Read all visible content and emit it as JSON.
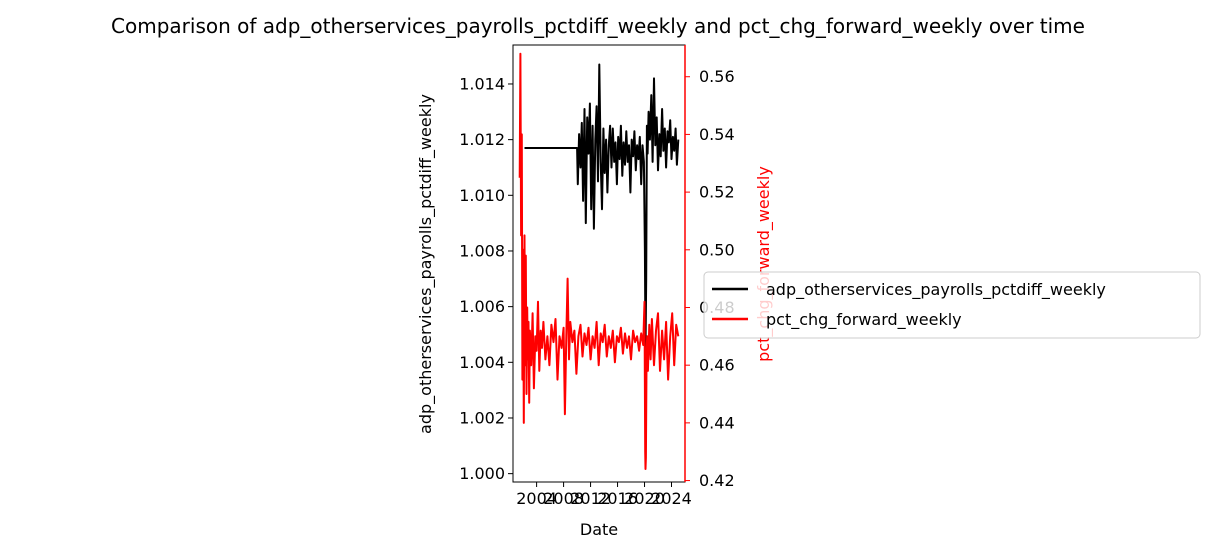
{
  "chart_data": {
    "type": "line",
    "title": "Comparison of adp_otherservices_payrolls_pctdiff_weekly and pct_chg_forward_weekly over time",
    "xlabel": "Date",
    "ylabel_left": "adp_otherservices_payrolls_pctdiff_weekly",
    "ylabel_right": "pct_chg_forward_weekly",
    "xlim": [
      2000.5,
      2026.0
    ],
    "ylim_left": [
      0.9997,
      1.0154
    ],
    "ylim_right": [
      0.4195,
      0.571
    ],
    "x_ticks": [
      2004,
      2008,
      2012,
      2016,
      2020,
      2024
    ],
    "x_tick_labels": [
      "2004",
      "2008",
      "2012",
      "2016",
      "2020",
      "2024"
    ],
    "y_left_ticks": [
      1.0,
      1.002,
      1.004,
      1.006,
      1.008,
      1.01,
      1.012,
      1.014
    ],
    "y_left_tick_labels": [
      "1.000",
      "1.002",
      "1.004",
      "1.006",
      "1.008",
      "1.010",
      "1.012",
      "1.014"
    ],
    "y_right_ticks": [
      0.42,
      0.44,
      0.46,
      0.48,
      0.5,
      0.52,
      0.54,
      0.56
    ],
    "y_right_tick_labels": [
      "0.42",
      "0.44",
      "0.46",
      "0.48",
      "0.50",
      "0.52",
      "0.54",
      "0.56"
    ],
    "legend_position": "center-right (outside)",
    "grid": false,
    "series": [
      {
        "name": "adp_otherservices_payrolls_pctdiff_weekly",
        "axis": "left",
        "color": "#000000",
        "x": [
          2002.2,
          2010.0,
          2010.1,
          2010.3,
          2010.5,
          2010.7,
          2010.9,
          2011.1,
          2011.3,
          2011.5,
          2011.7,
          2011.9,
          2012.1,
          2012.3,
          2012.5,
          2012.7,
          2012.9,
          2013.1,
          2013.3,
          2013.5,
          2013.7,
          2013.9,
          2014.1,
          2014.3,
          2014.5,
          2014.7,
          2014.9,
          2015.1,
          2015.3,
          2015.5,
          2015.7,
          2015.9,
          2016.1,
          2016.3,
          2016.5,
          2016.7,
          2016.9,
          2017.1,
          2017.3,
          2017.5,
          2017.7,
          2017.9,
          2018.1,
          2018.3,
          2018.5,
          2018.7,
          2018.9,
          2019.1,
          2019.3,
          2019.5,
          2019.7,
          2019.9,
          2020.05,
          2020.15,
          2020.25,
          2020.35,
          2020.45,
          2020.6,
          2020.8,
          2021.0,
          2021.2,
          2021.4,
          2021.6,
          2021.8,
          2022.0,
          2022.2,
          2022.4,
          2022.6,
          2022.8,
          2023.0,
          2023.2,
          2023.4,
          2023.6,
          2023.8,
          2024.0,
          2024.2,
          2024.4,
          2024.6,
          2024.8,
          2025.0
        ],
        "y": [
          1.0117,
          1.0117,
          1.0104,
          1.0122,
          1.011,
          1.0126,
          1.0098,
          1.0131,
          1.009,
          1.0128,
          1.0115,
          1.0133,
          1.0095,
          1.0125,
          1.0088,
          1.012,
          1.0132,
          1.0105,
          1.0147,
          1.0112,
          1.0095,
          1.0124,
          1.0108,
          1.012,
          1.0101,
          1.0118,
          1.0125,
          1.011,
          1.0124,
          1.0112,
          1.0119,
          1.0104,
          1.0121,
          1.0113,
          1.0125,
          1.0107,
          1.0119,
          1.0111,
          1.0123,
          1.0112,
          1.0118,
          1.0101,
          1.012,
          1.0114,
          1.0123,
          1.0109,
          1.0118,
          1.0113,
          1.0121,
          1.0104,
          1.0118,
          1.0112,
          1.008,
          1.0045,
          1.007,
          1.0125,
          1.0115,
          1.013,
          1.012,
          1.0136,
          1.0112,
          1.0142,
          1.0118,
          1.0128,
          1.0109,
          1.0122,
          1.0114,
          1.0131,
          1.0116,
          1.0124,
          1.011,
          1.0123,
          1.0119,
          1.0127,
          1.0113,
          1.0121,
          1.0116,
          1.0124,
          1.0111,
          1.012
        ]
      },
      {
        "name": "pct_chg_forward_weekly",
        "axis": "right",
        "color": "#ff0000",
        "x": [
          2001.5,
          2001.6,
          2001.7,
          2001.8,
          2001.9,
          2002.0,
          2002.1,
          2002.2,
          2002.3,
          2002.4,
          2002.5,
          2002.6,
          2002.7,
          2002.8,
          2002.9,
          2003.0,
          2003.2,
          2003.4,
          2003.6,
          2003.8,
          2004.0,
          2004.2,
          2004.4,
          2004.6,
          2004.8,
          2005.0,
          2005.3,
          2005.6,
          2005.9,
          2006.2,
          2006.5,
          2006.8,
          2007.1,
          2007.4,
          2007.7,
          2008.0,
          2008.2,
          2008.4,
          2008.6,
          2008.8,
          2009.0,
          2009.3,
          2009.6,
          2009.9,
          2010.2,
          2010.5,
          2010.8,
          2011.1,
          2011.4,
          2011.7,
          2012.0,
          2012.3,
          2012.6,
          2012.9,
          2013.2,
          2013.5,
          2013.8,
          2014.1,
          2014.4,
          2014.7,
          2015.0,
          2015.3,
          2015.6,
          2015.9,
          2016.2,
          2016.5,
          2016.8,
          2017.1,
          2017.4,
          2017.7,
          2018.0,
          2018.3,
          2018.6,
          2018.9,
          2019.2,
          2019.5,
          2019.8,
          2020.0,
          2020.1,
          2020.15,
          2020.2,
          2020.3,
          2020.4,
          2020.5,
          2020.7,
          2020.9,
          2021.1,
          2021.4,
          2021.7,
          2022.0,
          2022.3,
          2022.6,
          2022.9,
          2023.2,
          2023.5,
          2023.8,
          2024.1,
          2024.4,
          2024.7,
          2025.0
        ],
        "y": [
          0.525,
          0.568,
          0.505,
          0.54,
          0.455,
          0.5,
          0.44,
          0.505,
          0.46,
          0.498,
          0.45,
          0.48,
          0.462,
          0.475,
          0.447,
          0.472,
          0.46,
          0.478,
          0.452,
          0.47,
          0.465,
          0.482,
          0.458,
          0.472,
          0.466,
          0.475,
          0.462,
          0.47,
          0.46,
          0.474,
          0.468,
          0.476,
          0.455,
          0.47,
          0.466,
          0.473,
          0.443,
          0.47,
          0.49,
          0.462,
          0.475,
          0.468,
          0.472,
          0.457,
          0.47,
          0.474,
          0.463,
          0.471,
          0.467,
          0.473,
          0.462,
          0.47,
          0.466,
          0.475,
          0.46,
          0.471,
          0.468,
          0.474,
          0.463,
          0.47,
          0.466,
          0.472,
          0.461,
          0.47,
          0.468,
          0.473,
          0.464,
          0.471,
          0.466,
          0.47,
          0.462,
          0.472,
          0.468,
          0.47,
          0.465,
          0.471,
          0.467,
          0.482,
          0.43,
          0.424,
          0.428,
          0.465,
          0.47,
          0.458,
          0.474,
          0.462,
          0.476,
          0.46,
          0.472,
          0.478,
          0.458,
          0.472,
          0.462,
          0.475,
          0.455,
          0.47,
          0.478,
          0.46,
          0.474,
          0.47
        ]
      }
    ]
  }
}
